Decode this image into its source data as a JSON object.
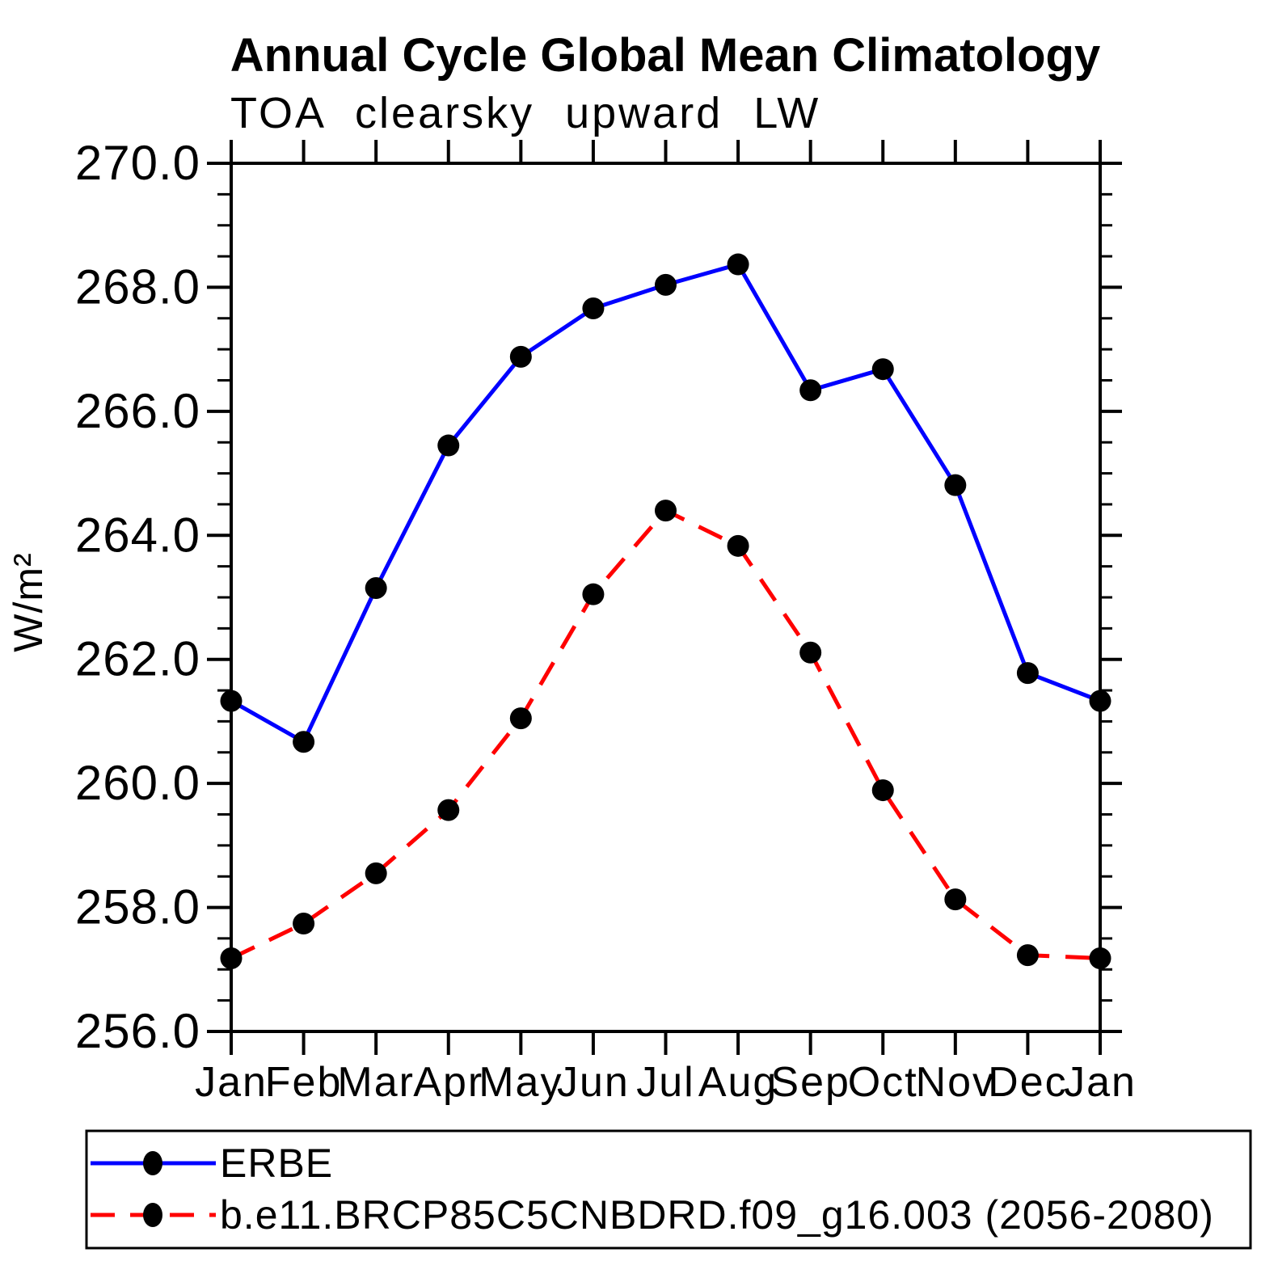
{
  "title": "Annual Cycle Global Mean Climatology",
  "subtitle": "TOA clearsky upward LW",
  "colors": {
    "erbe_line": "#0000ff",
    "model_line": "#ff0000",
    "marker": "#000000",
    "axis": "#000000",
    "background": "#ffffff"
  },
  "chart_data": {
    "type": "line",
    "title": "Annual Cycle Global Mean Climatology",
    "subtitle": "TOA clearsky upward LW",
    "xlabel": "",
    "ylabel": "W/m²",
    "ylim": [
      256.0,
      270.0
    ],
    "y_major_step": 2.0,
    "y_minor_step": 0.5,
    "grid": "off",
    "legend_position": "bottom-left-box",
    "x_categories": [
      "Jan",
      "Feb",
      "Mar",
      "Apr",
      "May",
      "Jun",
      "Jul",
      "Aug",
      "Sep",
      "Oct",
      "Nov",
      "Dec",
      "Jan"
    ],
    "y_ticks": [
      {
        "value": 270.0,
        "label": "270.0"
      },
      {
        "value": 268.0,
        "label": "268.0"
      },
      {
        "value": 266.0,
        "label": "266.0"
      },
      {
        "value": 264.0,
        "label": "264.0"
      },
      {
        "value": 262.0,
        "label": "262.0"
      },
      {
        "value": 260.0,
        "label": "260.0"
      },
      {
        "value": 258.0,
        "label": "258.0"
      },
      {
        "value": 256.0,
        "label": "256.0"
      }
    ],
    "series": [
      {
        "name": "ERBE",
        "color": "#0000ff",
        "line_style": "solid",
        "marker": "circle",
        "marker_color": "#000000",
        "values": [
          261.33,
          260.67,
          263.15,
          265.45,
          266.88,
          267.66,
          268.04,
          268.37,
          266.34,
          266.68,
          264.81,
          261.78,
          261.33
        ]
      },
      {
        "name": "b.e11.BRCP85C5CNBDRD.f09_g16.003 (2056-2080)",
        "color": "#ff0000",
        "line_style": "dashed",
        "marker": "circle",
        "marker_color": "#000000",
        "values": [
          257.18,
          257.74,
          258.55,
          259.57,
          261.05,
          263.05,
          264.4,
          263.83,
          262.11,
          259.89,
          258.13,
          257.23,
          257.18
        ]
      }
    ]
  }
}
